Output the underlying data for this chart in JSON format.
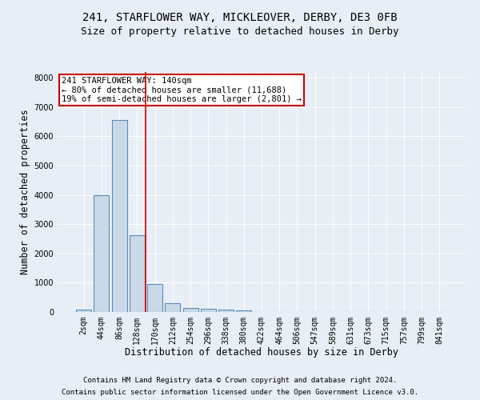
{
  "title_line1": "241, STARFLOWER WAY, MICKLEOVER, DERBY, DE3 0FB",
  "title_line2": "Size of property relative to detached houses in Derby",
  "xlabel": "Distribution of detached houses by size in Derby",
  "ylabel": "Number of detached properties",
  "bar_labels": [
    "2sqm",
    "44sqm",
    "86sqm",
    "128sqm",
    "170sqm",
    "212sqm",
    "254sqm",
    "296sqm",
    "338sqm",
    "380sqm",
    "422sqm",
    "464sqm",
    "506sqm",
    "547sqm",
    "589sqm",
    "631sqm",
    "673sqm",
    "715sqm",
    "757sqm",
    "799sqm",
    "841sqm"
  ],
  "bar_values": [
    75,
    3980,
    6550,
    2620,
    960,
    310,
    130,
    110,
    80,
    50,
    0,
    0,
    0,
    0,
    0,
    0,
    0,
    0,
    0,
    0,
    0
  ],
  "bar_color": "#c9d9e8",
  "bar_edge_color": "#5b8db8",
  "bg_color": "#e8eef5",
  "grid_color": "#ffffff",
  "vline_x": 3.5,
  "vline_color": "#cc0000",
  "annotation_text": "241 STARFLOWER WAY: 140sqm\n← 80% of detached houses are smaller (11,688)\n19% of semi-detached houses are larger (2,801) →",
  "annotation_box_color": "#ffffff",
  "annotation_box_edge": "#cc0000",
  "ylim": [
    0,
    8200
  ],
  "yticks": [
    0,
    1000,
    2000,
    3000,
    4000,
    5000,
    6000,
    7000,
    8000
  ],
  "footnote1": "Contains HM Land Registry data © Crown copyright and database right 2024.",
  "footnote2": "Contains public sector information licensed under the Open Government Licence v3.0.",
  "title_fontsize": 10,
  "subtitle_fontsize": 9,
  "axis_label_fontsize": 8.5,
  "tick_fontsize": 7,
  "footnote_fontsize": 6.5,
  "annotation_fontsize": 7.5
}
